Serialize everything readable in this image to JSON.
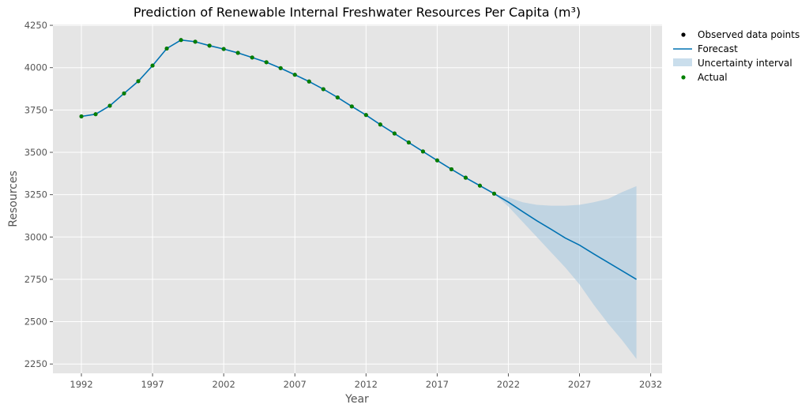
{
  "chart_data": {
    "type": "line",
    "title": "Prediction of Renewable Internal Freshwater Resources Per Capita (m³)",
    "xlabel": "Year",
    "ylabel": "Resources",
    "xlim": [
      1990,
      2032.8
    ],
    "ylim": [
      2195,
      4255
    ],
    "xticks": [
      "1992",
      "1997",
      "2002",
      "2007",
      "2012",
      "2017",
      "2022",
      "2027",
      "2032"
    ],
    "yticks": [
      "2250",
      "2500",
      "2750",
      "3000",
      "3250",
      "3500",
      "3750",
      "4000",
      "4250"
    ],
    "grid": true,
    "legend_placement": "outside-top-right",
    "legend": [
      "Observed data points",
      "Forecast",
      "Uncertainty interval",
      "Actual"
    ],
    "series": [
      {
        "name": "Actual",
        "type": "scatter",
        "color": "#008000",
        "x": [
          1992,
          1993,
          1994,
          1995,
          1996,
          1997,
          1998,
          1999,
          2000,
          2001,
          2002,
          2003,
          2004,
          2005,
          2006,
          2007,
          2008,
          2009,
          2010,
          2011,
          2012,
          2013,
          2014,
          2015,
          2016,
          2017,
          2018,
          2019,
          2020,
          2021
        ],
        "y": [
          3712,
          3725,
          3775,
          3848,
          3920,
          4012,
          4113,
          4163,
          4153,
          4130,
          4110,
          4087,
          4060,
          4032,
          3997,
          3958,
          3918,
          3873,
          3824,
          3771,
          3720,
          3664,
          3611,
          3558,
          3505,
          3452,
          3400,
          3350,
          3303,
          3256
        ]
      },
      {
        "name": "Forecast",
        "type": "line",
        "color": "#0072b2",
        "x": [
          1992,
          1993,
          1994,
          1995,
          1996,
          1997,
          1998,
          1999,
          2000,
          2001,
          2002,
          2003,
          2004,
          2005,
          2006,
          2007,
          2008,
          2009,
          2010,
          2011,
          2012,
          2013,
          2014,
          2015,
          2016,
          2017,
          2018,
          2019,
          2020,
          2021,
          2022,
          2023,
          2024,
          2025,
          2026,
          2027,
          2028,
          2029,
          2030,
          2031
        ],
        "y": [
          3712,
          3725,
          3775,
          3848,
          3920,
          4012,
          4113,
          4163,
          4153,
          4130,
          4110,
          4087,
          4060,
          4032,
          3997,
          3958,
          3918,
          3873,
          3824,
          3771,
          3720,
          3664,
          3611,
          3558,
          3505,
          3452,
          3400,
          3350,
          3303,
          3256,
          3206,
          3150,
          3096,
          3046,
          2994,
          2952,
          2900,
          2850,
          2800,
          2750
        ]
      },
      {
        "name": "Uncertainty interval",
        "type": "area",
        "color": "#a6c8e0",
        "x": [
          2021,
          2022,
          2023,
          2024,
          2025,
          2026,
          2027,
          2028,
          2029,
          2030,
          2031
        ],
        "upper": [
          3256,
          3235,
          3205,
          3190,
          3185,
          3185,
          3190,
          3205,
          3225,
          3265,
          3300
        ],
        "lower": [
          3256,
          3180,
          3090,
          3000,
          2910,
          2820,
          2720,
          2600,
          2490,
          2390,
          2280
        ]
      }
    ]
  }
}
